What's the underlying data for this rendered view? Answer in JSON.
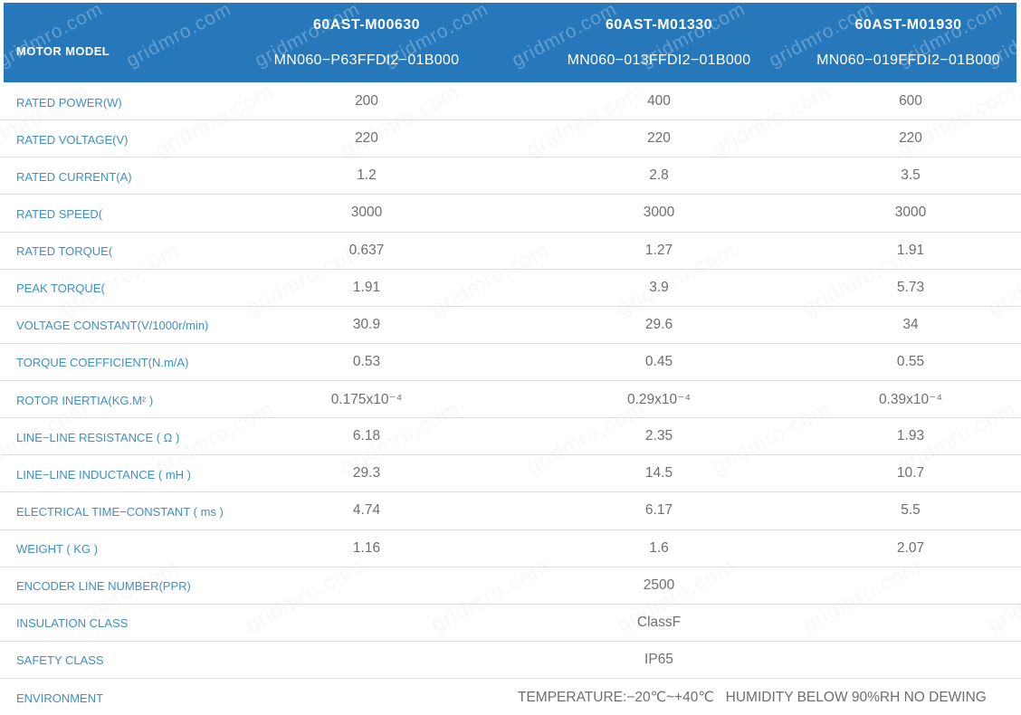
{
  "watermark": "gridmro.com",
  "colors": {
    "header_bg": "#2678bb",
    "label_color": "#3e8fc6",
    "value_color": "#6e6e6e",
    "border_color": "#dddddd"
  },
  "header": {
    "row_label": "MOTOR MODEL",
    "models": [
      {
        "series": "60AST-M00630",
        "code": "MN060−P63FFDI2−01B000"
      },
      {
        "series": "60AST-M01330",
        "code": "MN060−013FFDI2−01B000"
      },
      {
        "series": "60AST-M01930",
        "code": "MN060−019FFDI2−01B000"
      }
    ]
  },
  "rows": [
    {
      "label": "RATED POWER(W)",
      "values": [
        "200",
        "400",
        "600"
      ]
    },
    {
      "label": "RATED VOLTAGE(V)",
      "values": [
        "220",
        "220",
        "220"
      ]
    },
    {
      "label": "RATED CURRENT(A)",
      "values": [
        "1.2",
        "2.8",
        "3.5"
      ]
    },
    {
      "label": "RATED SPEED(",
      "values": [
        "3000",
        "3000",
        "3000"
      ]
    },
    {
      "label": "RATED TORQUE(",
      "values": [
        "0.637",
        "1.27",
        "1.91"
      ]
    },
    {
      "label": "PEAK TORQUE(",
      "values": [
        "1.91",
        "3.9",
        "5.73"
      ]
    },
    {
      "label": "VOLTAGE CONSTANT(V/1000r/min)",
      "values": [
        "30.9",
        "29.6",
        "34"
      ]
    },
    {
      "label": "TORQUE COEFFICIENT(N.m/A)",
      "values": [
        "0.53",
        "0.45",
        "0.55"
      ]
    },
    {
      "label": "ROTOR INERTIA(KG.M² )",
      "values": [
        "0.175x10⁻⁴",
        "0.29x10⁻⁴",
        "0.39x10⁻⁴"
      ]
    },
    {
      "label": "LINE−LINE RESISTANCE ( Ω )",
      "values": [
        "6.18",
        "2.35",
        "1.93"
      ]
    },
    {
      "label": "LINE−LINE INDUCTANCE ( mH )",
      "values": [
        "29.3",
        "14.5",
        "10.7"
      ]
    },
    {
      "label": "ELECTRICAL TIME−CONSTANT ( ms )",
      "values": [
        "4.74",
        "6.17",
        "5.5"
      ]
    },
    {
      "label": "WEIGHT ( KG )",
      "values": [
        "1.16",
        "1.6",
        "2.07"
      ]
    },
    {
      "label": "ENCODER LINE NUMBER(PPR)",
      "span": "2500"
    },
    {
      "label": "INSULATION CLASS",
      "span": "ClassF"
    },
    {
      "label": "SAFETY CLASS",
      "span": "IP65"
    },
    {
      "label": "ENVIRONMENT",
      "span": "TEMPERATURE:−20℃~+40℃   HUMIDITY BELOW 90%RH NO DEWING"
    }
  ]
}
